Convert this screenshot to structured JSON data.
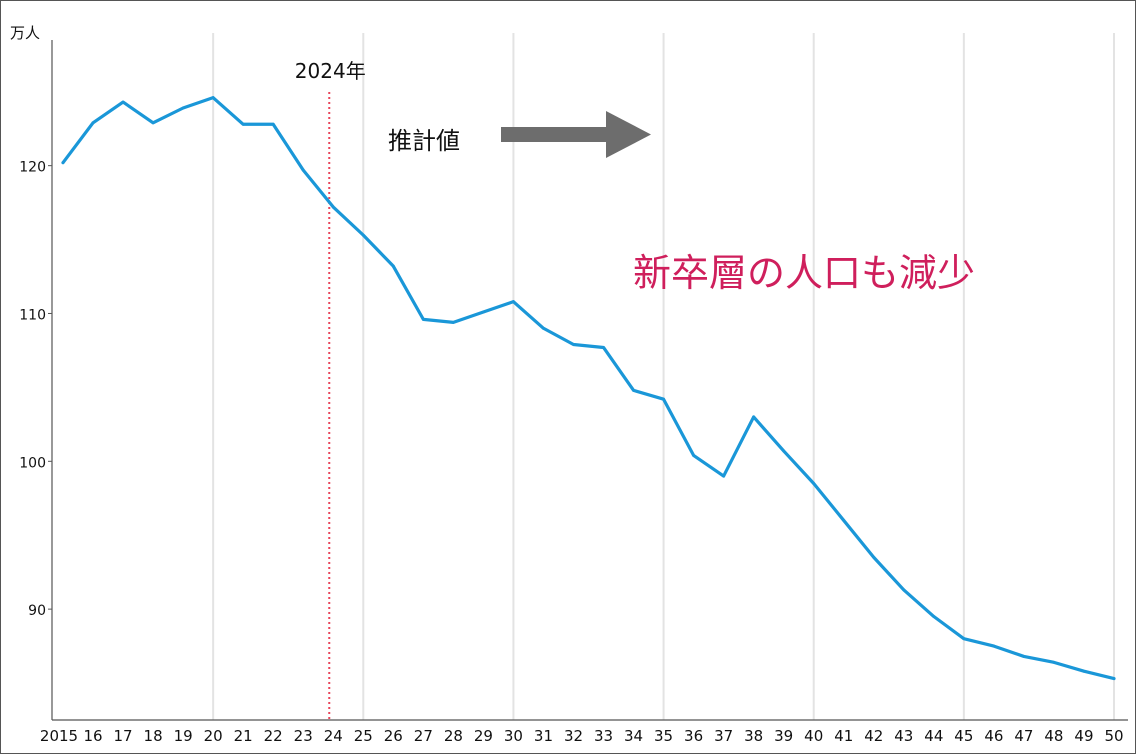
{
  "chart_data": {
    "type": "line",
    "ylabel": "万人",
    "ylim": [
      82.5,
      128.5
    ],
    "yticks": [
      {
        "value": 120,
        "label": "120"
      },
      {
        "value": 110,
        "label": "110"
      },
      {
        "value": 100,
        "label": "100"
      },
      {
        "value": 90,
        "label": "90"
      }
    ],
    "x_tick_labels": [
      "2015",
      "16",
      "17",
      "18",
      "19",
      "20",
      "21",
      "22",
      "23",
      "24",
      "25",
      "26",
      "27",
      "28",
      "29",
      "30",
      "31",
      "32",
      "33",
      "34",
      "35",
      "36",
      "37",
      "38",
      "39",
      "40",
      "41",
      "42",
      "43",
      "44",
      "45",
      "46",
      "47",
      "48",
      "49",
      "50"
    ],
    "vertical_gridlines_at": [
      2020,
      2025,
      2030,
      2035,
      2040,
      2045,
      2050
    ],
    "grid": true,
    "series": [
      {
        "color": "#1a97d8",
        "x": [
          2015,
          2016,
          2017,
          2018,
          2019,
          2020,
          2021,
          2022,
          2023,
          2024,
          2025,
          2026,
          2027,
          2028,
          2029,
          2030,
          2031,
          2032,
          2033,
          2034,
          2035,
          2036,
          2037,
          2038,
          2039,
          2040,
          2041,
          2042,
          2043,
          2044,
          2045,
          2046,
          2047,
          2048,
          2049,
          2050
        ],
        "values": [
          120.2,
          122.9,
          124.3,
          122.9,
          123.9,
          124.6,
          122.8,
          122.8,
          119.7,
          117.2,
          115.3,
          113.2,
          109.6,
          109.4,
          110.1,
          110.8,
          109.0,
          107.9,
          107.7,
          104.8,
          104.2,
          100.4,
          99.0,
          103.0,
          100.7,
          98.5,
          96.0,
          93.5,
          91.3,
          89.5,
          88.0,
          87.5,
          86.8,
          86.4,
          85.8,
          85.3
        ]
      }
    ],
    "annotations": {
      "marker_line": {
        "x": 2024,
        "label": "2024年",
        "color": "#e8445a"
      },
      "projection_label": "推計値",
      "arrow_color": "#6d6d6d",
      "headline": "新卒層の人口も減少",
      "headline_color": "#cf1f5c"
    }
  }
}
